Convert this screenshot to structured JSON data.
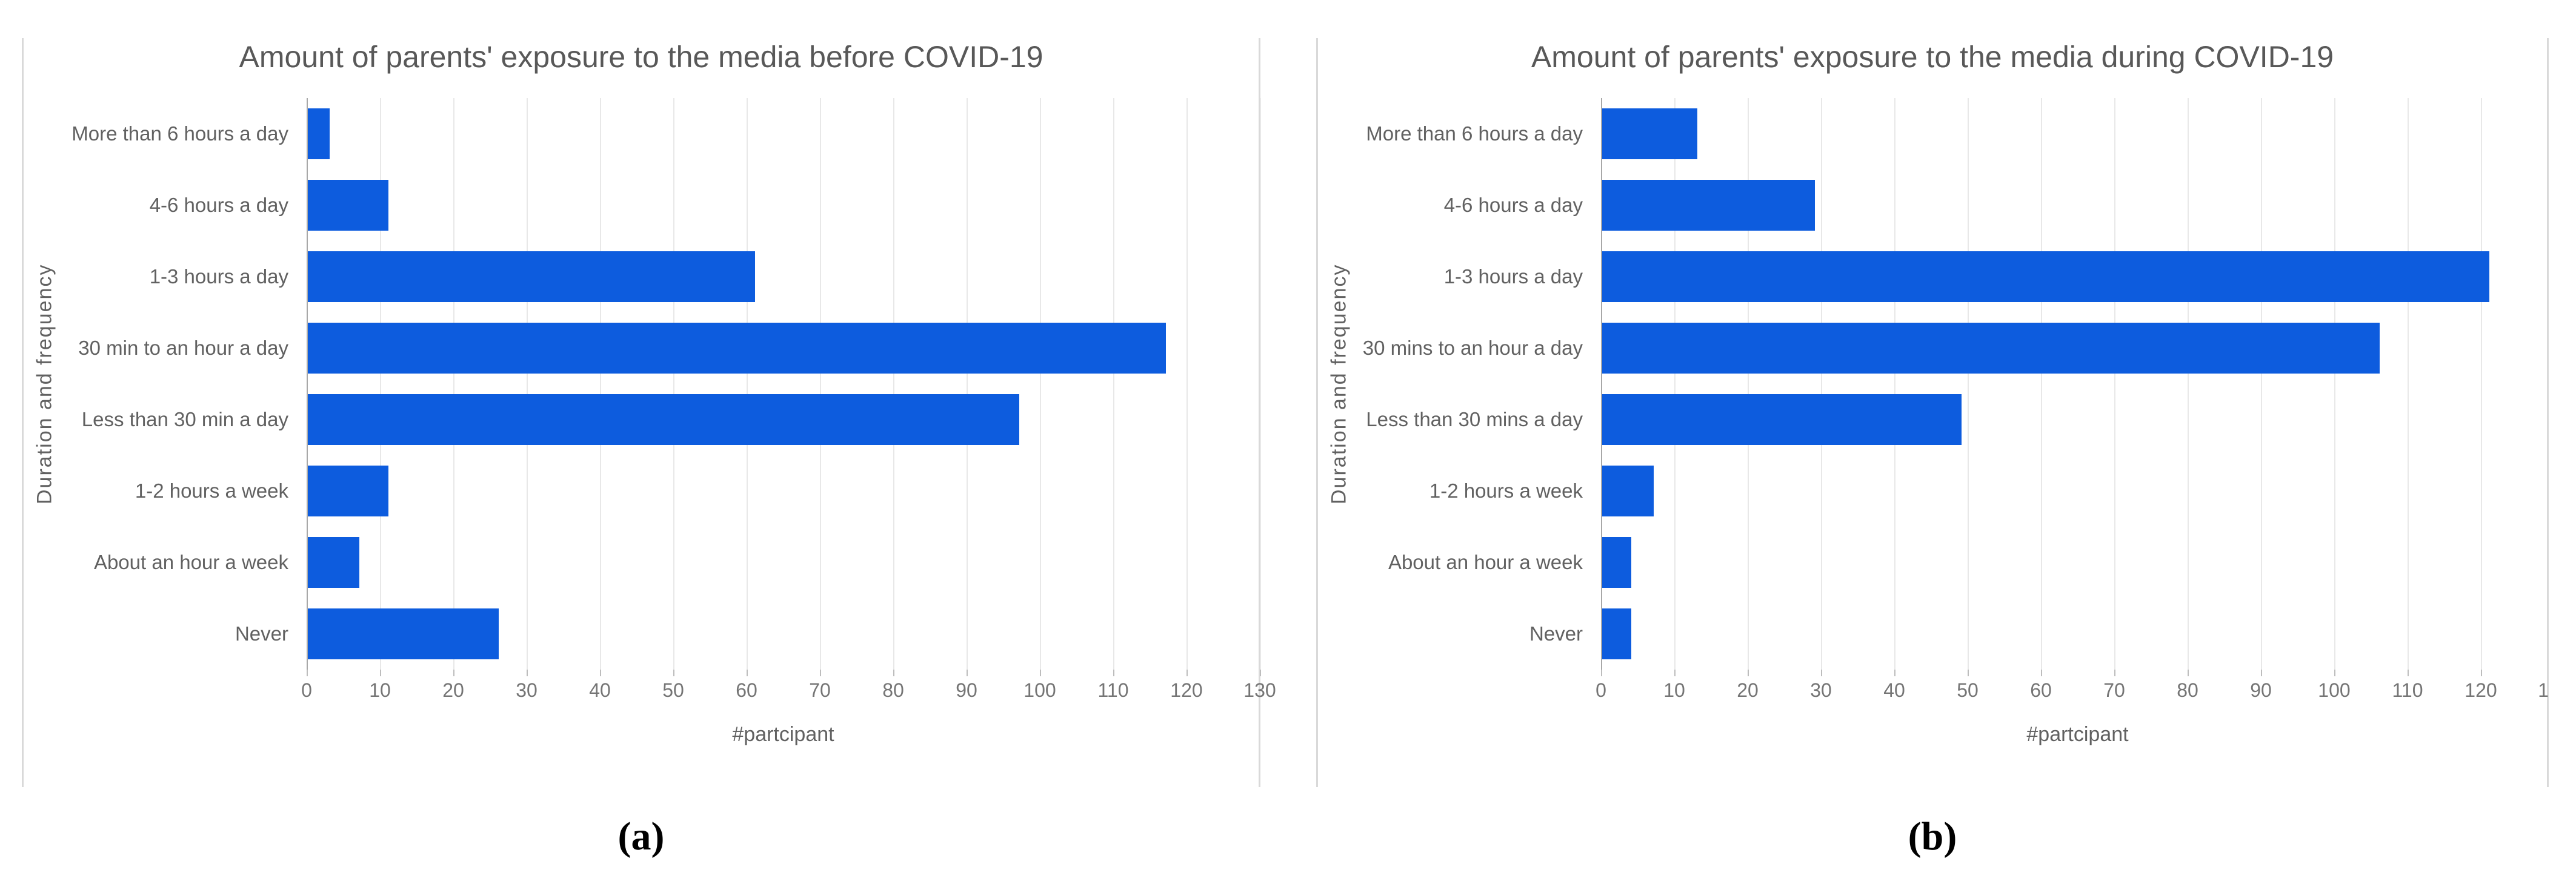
{
  "captions": [
    "(a)",
    "(b)"
  ],
  "colors": {
    "bar": "#0d5cde",
    "grid": "#e8e8e8",
    "axis": "#a8a8a8",
    "nub": "#bdbdbd",
    "title": "#585858",
    "text": "#616161",
    "tick_text": "#757575",
    "panel_border": "#d9d9d9"
  },
  "chart_data": [
    {
      "type": "bar",
      "orientation": "horizontal",
      "title": "Amount of parents' exposure to the media before COVID-19",
      "xlabel": "#partcipant",
      "ylabel": "Duration and frequency",
      "categories": [
        "More than 6 hours a day",
        "4-6 hours a day",
        "1-3 hours a day",
        "30 min to an hour a day",
        "Less than 30 min a day",
        "1-2 hours a week",
        "About an hour a week",
        "Never"
      ],
      "values": [
        3,
        11,
        61,
        117,
        97,
        11,
        7,
        26
      ],
      "xlim": [
        0,
        130
      ],
      "xtick_step": 10,
      "grid": true,
      "legend": "none"
    },
    {
      "type": "bar",
      "orientation": "horizontal",
      "title": "Amount of parents' exposure to the media during COVID-19",
      "xlabel": "#partcipant",
      "ylabel": "Duration and frequency",
      "categories": [
        "More than 6 hours a day",
        "4-6 hours a day",
        "1-3 hours a day",
        "30 mins to an hour a day",
        "Less than 30 mins a day",
        "1-2 hours a week",
        "About an hour a week",
        "Never"
      ],
      "values": [
        13,
        29,
        121,
        106,
        49,
        7,
        4,
        4
      ],
      "xlim": [
        0,
        130
      ],
      "xtick_step": 10,
      "grid": true,
      "legend": "none"
    }
  ]
}
